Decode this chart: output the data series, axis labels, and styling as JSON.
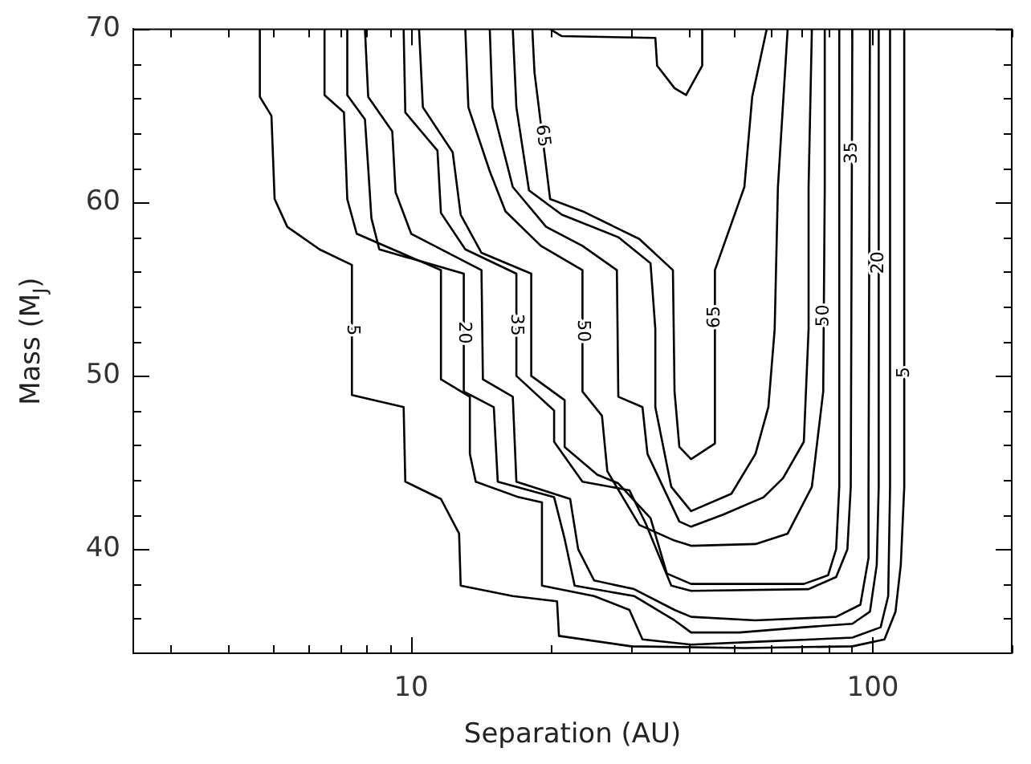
{
  "chart_data": {
    "type": "line",
    "xlabel": "Separation (AU)",
    "ylabel": "Mass (M$_{J}$)",
    "log": "x",
    "xlim": [
      2.5,
      200
    ],
    "ylim": [
      34,
      70
    ],
    "xticks": [
      {
        "value": 3,
        "label": null
      },
      {
        "value": 4,
        "label": null
      },
      {
        "value": 5,
        "label": null
      },
      {
        "value": 6,
        "label": null
      },
      {
        "value": 7,
        "label": null
      },
      {
        "value": 8,
        "label": null
      },
      {
        "value": 9,
        "label": null
      },
      10,
      {
        "value": 20,
        "label": null
      },
      {
        "value": 30,
        "label": null
      },
      {
        "value": 40,
        "label": null
      },
      {
        "value": 50,
        "label": null
      },
      {
        "value": 60,
        "label": null
      },
      {
        "value": 70,
        "label": null
      },
      {
        "value": 80,
        "label": null
      },
      {
        "value": 90,
        "label": null
      },
      100,
      {
        "value": 200,
        "label": null
      }
    ],
    "yticks": [
      {
        "value": 36,
        "label": null
      },
      {
        "value": 38,
        "label": null
      },
      40,
      {
        "value": 42,
        "label": null
      },
      {
        "value": 44,
        "label": null
      },
      {
        "value": 46,
        "label": null
      },
      {
        "value": 48,
        "label": null
      },
      50,
      {
        "value": 52,
        "label": null
      },
      {
        "value": 54,
        "label": null
      },
      {
        "value": 56,
        "label": null
      },
      {
        "value": 58,
        "label": null
      },
      60,
      {
        "value": 62,
        "label": null
      },
      {
        "value": 64,
        "label": null
      },
      {
        "value": 66,
        "label": null
      },
      {
        "value": 68,
        "label": null
      },
      70
    ],
    "grid": false,
    "legend": false,
    "marker": "none",
    "line_style": "solid",
    "series": [
      {
        "name": "5",
        "color": "#000000",
        "x": [
          4.7,
          4.7,
          4.98,
          5.06,
          5.39,
          6.33,
          7.44,
          7.44,
          9.63,
          9.71,
          11.6,
          12.7,
          12.8,
          16.6,
          20.7,
          20.9,
          30.0,
          52.7,
          90.3,
          106,
          112,
          115,
          117,
          117
        ],
        "values": [
          70,
          66.1,
          65.0,
          60.2,
          58.6,
          57.3,
          56.4,
          48.9,
          48.2,
          43.9,
          42.9,
          40.9,
          37.9,
          37.3,
          37.0,
          35.0,
          34.4,
          34.3,
          34.4,
          34.8,
          36.4,
          39.1,
          43.6,
          70
        ]
      },
      {
        "color": "#000000",
        "x": [
          6.49,
          6.49,
          7.15,
          7.27,
          7.62,
          11.6,
          11.6,
          13.4,
          13.4,
          13.8,
          17.1,
          19.2,
          19.2,
          24.9,
          29.7,
          31.7,
          40.4,
          60.4,
          90.3,
          104,
          108,
          109,
          109
        ],
        "values": [
          70,
          66.2,
          65.2,
          60.2,
          58.2,
          56.1,
          49.8,
          48.8,
          45.5,
          43.9,
          43.0,
          42.7,
          37.9,
          37.3,
          36.5,
          34.8,
          34.5,
          34.7,
          34.9,
          35.5,
          37.3,
          43.6,
          70
        ]
      },
      {
        "name": "20",
        "color": "#000000",
        "x": [
          7.27,
          7.27,
          7.94,
          8.07,
          8.2,
          8.53,
          13.0,
          13.0,
          15.1,
          15.4,
          20.4,
          21.5,
          22.6,
          30.4,
          37.2,
          40.4,
          51.4,
          70.9,
          90.3,
          98.6,
          102,
          103,
          103
        ],
        "values": [
          70,
          66.2,
          64.8,
          62.0,
          59.1,
          57.3,
          55.9,
          49.1,
          48.2,
          43.9,
          43.0,
          40.6,
          37.9,
          37.3,
          35.9,
          35.2,
          35.2,
          35.5,
          35.7,
          36.4,
          39.1,
          43.6,
          70
        ]
      },
      {
        "color": "#000000",
        "x": [
          7.94,
          8.07,
          9.1,
          9.25,
          10.0,
          14.2,
          14.3,
          16.6,
          16.9,
          22.1,
          23.0,
          24.9,
          30.4,
          37.2,
          40.4,
          55.7,
          83.3,
          94.0,
          97.9,
          97.9,
          98.6
        ],
        "values": [
          70,
          66.1,
          64.1,
          60.6,
          58.2,
          56.1,
          49.8,
          48.8,
          43.9,
          42.9,
          40.0,
          38.2,
          37.7,
          36.5,
          36.1,
          35.9,
          36.1,
          36.8,
          39.5,
          43.6,
          70
        ]
      },
      {
        "name": "35",
        "color": "#000000",
        "x": [
          9.63,
          9.71,
          11.4,
          11.6,
          13.1,
          16.9,
          16.9,
          20.4,
          20.4,
          23.5,
          29.7,
          32.2,
          36.6,
          40.4,
          72.6,
          83.3,
          88.1,
          89.6,
          90.3
        ],
        "values": [
          70,
          65.2,
          63.0,
          59.4,
          57.3,
          55.9,
          50.0,
          48.0,
          46.2,
          43.9,
          43.4,
          41.5,
          37.9,
          37.6,
          37.7,
          38.4,
          40.0,
          43.6,
          70
        ]
      },
      {
        "color": "#000000",
        "x": [
          10.4,
          10.6,
          12.3,
          12.8,
          14.2,
          18.2,
          18.2,
          21.5,
          21.5,
          25.3,
          28.1,
          33.0,
          35.8,
          40.4,
          70.9,
          80.0,
          83.3,
          84.6,
          84.6
        ],
        "values": [
          70,
          65.5,
          62.9,
          59.3,
          57.1,
          55.9,
          50.0,
          48.6,
          45.9,
          44.3,
          43.8,
          41.8,
          38.6,
          38.0,
          38.0,
          38.5,
          40.0,
          43.6,
          70
        ]
      },
      {
        "name": "50",
        "color": "#000000",
        "x": [
          13.1,
          13.3,
          14.8,
          16.0,
          19.1,
          23.5,
          23.5,
          25.9,
          26.6,
          31.2,
          37.2,
          40.4,
          55.7,
          65.4,
          73.8,
          78.1,
          78.7,
          78.7
        ],
        "values": [
          70,
          65.5,
          61.8,
          59.5,
          57.5,
          56.1,
          49.1,
          47.7,
          44.5,
          41.4,
          40.5,
          40.2,
          40.3,
          40.9,
          43.6,
          49.1,
          60.9,
          70
        ]
      },
      {
        "color": "#000000",
        "x": [
          14.8,
          15.0,
          16.6,
          19.6,
          23.5,
          27.9,
          28.1,
          31.7,
          32.5,
          38.1,
          40.4,
          47.4,
          58.0,
          63.9,
          70.9,
          72.6,
          72.6,
          73.8
        ],
        "values": [
          70,
          65.5,
          60.9,
          58.6,
          57.5,
          56.1,
          48.8,
          48.2,
          45.5,
          41.6,
          41.3,
          42.0,
          43.0,
          44.1,
          46.2,
          52.7,
          60.9,
          70
        ]
      },
      {
        "color": "#000000",
        "x": [
          16.6,
          16.9,
          18.0,
          21.2,
          28.1,
          33.0,
          33.8,
          33.8,
          36.6,
          40.4,
          49.4,
          55.7,
          59.4,
          61.3,
          62.3,
          65.4
        ],
        "values": [
          70,
          65.5,
          60.7,
          59.3,
          58.0,
          56.5,
          52.7,
          48.2,
          43.6,
          42.2,
          43.2,
          45.5,
          48.2,
          52.7,
          60.9,
          70
        ]
      },
      {
        "name": "65",
        "color": "#000000",
        "x": [
          18.3,
          18.5,
          20.0,
          23.5,
          31.2,
          36.9,
          37.2,
          38.1,
          40.4,
          45.5,
          45.5,
          52.7,
          54.8,
          58.9
        ],
        "values": [
          70,
          67.5,
          60.2,
          59.5,
          57.9,
          56.1,
          49.1,
          45.9,
          45.2,
          46.1,
          56.1,
          60.9,
          66.1,
          70
        ]
      },
      {
        "color": "#000000",
        "x": [
          20.0,
          21.2,
          33.8,
          34.1,
          37.2,
          39.4,
          42.7,
          42.7
        ],
        "values": [
          70,
          69.6,
          69.5,
          67.9,
          66.6,
          66.2,
          67.9,
          70
        ]
      }
    ]
  }
}
